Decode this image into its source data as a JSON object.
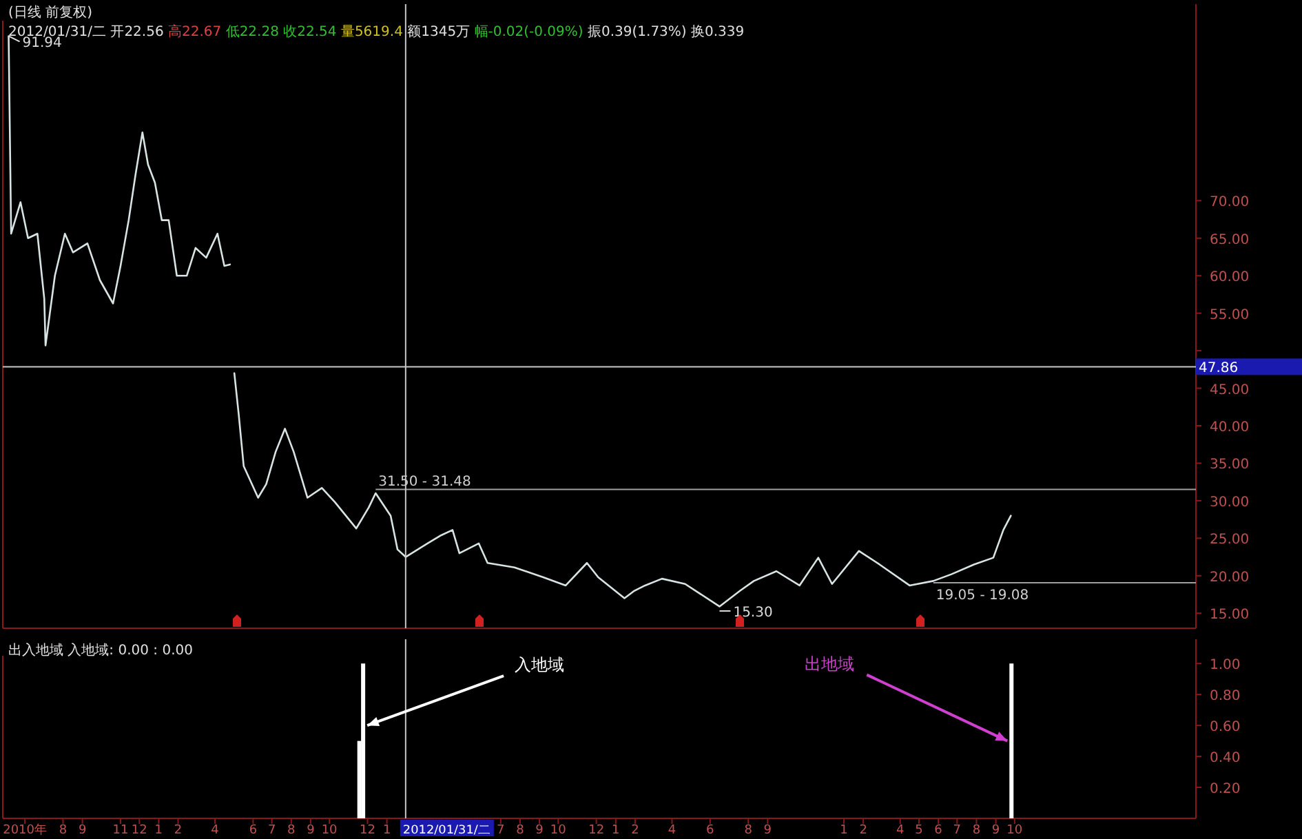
{
  "chart_data": [
    {
      "type": "line",
      "title": "(日线 前复权)",
      "subtitle": "2012/01/31/二 开22.56 高22.67 低22.28 收22.54 量5619.4 额1345万 幅-0.02(-0.09%) 振0.39(1.73%) 换0.339",
      "x": [
        "2010-05-06",
        "2010-05-10",
        "2010-05-25",
        "2010-06-06",
        "2010-06-21",
        "2010-07-02",
        "2010-07-04",
        "2010-07-19",
        "2010-08-04",
        "2010-08-17",
        "2010-09-09",
        "2010-09-29",
        "2010-10-20",
        "2010-11-01",
        "2010-11-14",
        "2010-11-25",
        "2010-12-06",
        "2010-12-15",
        "2010-12-26",
        "2011-01-06",
        "2011-01-17",
        "2011-01-30",
        "2011-02-15",
        "2011-03-01",
        "2011-03-18",
        "2011-04-05",
        "2011-04-16",
        "2011-04-25",
        "2011-04-28",
        "2011-05-02",
        "2011-05-09",
        "2011-05-17",
        "2011-06-09",
        "2011-06-22",
        "2011-07-07",
        "2011-07-22",
        "2011-08-05",
        "2011-08-27",
        "2011-09-19",
        "2011-10-10",
        "2011-11-13",
        "2011-12-03",
        "2011-12-14",
        "2012-01-07",
        "2012-01-18",
        "2012-01-31",
        "2012-03-06",
        "2012-03-28",
        "2012-04-15",
        "2012-04-26",
        "2012-05-27",
        "2012-06-10",
        "2012-07-23",
        "2012-09-07",
        "2012-10-13",
        "2012-11-16",
        "2012-12-04",
        "2013-01-15",
        "2013-01-31",
        "2013-02-17",
        "2013-03-16",
        "2013-04-22",
        "2013-06-16",
        "2013-07-19",
        "2013-08-10",
        "2013-09-15",
        "2013-10-22",
        "2013-11-21",
        "2013-12-13",
        "2014-01-25",
        "2014-02-27",
        "2014-04-16",
        "2014-05-24",
        "2014-06-22",
        "2014-07-28",
        "2014-08-28",
        "2014-09-13",
        "2014-09-25"
      ],
      "series": [
        {
          "color": "#d8e4e4",
          "values": [
            91.94,
            65.6,
            69.8,
            65,
            65.6,
            56.9,
            50.7,
            60,
            65.6,
            63.1,
            64.3,
            59.4,
            56.3,
            61.3,
            67.4,
            73.5,
            79.1,
            74.8,
            72.4,
            67.4,
            67.4,
            60,
            60,
            63.7,
            62.4,
            65.6,
            61.3,
            61.5,
            null,
            47,
            41.5,
            34.6,
            30.4,
            32.2,
            36.5,
            39.6,
            36.5,
            30.4,
            31.7,
            29.8,
            26.3,
            29.1,
            31,
            28,
            23.5,
            22.5,
            24.3,
            25.4,
            26.1,
            23,
            24.3,
            21.7,
            21.1,
            19.8,
            18.7,
            21.7,
            19.8,
            17,
            18,
            18.7,
            19.6,
            18.9,
            15.9,
            18,
            19.3,
            20.6,
            18.7,
            22.4,
            18.9,
            23.3,
            21.5,
            18.7,
            19.3,
            20.2,
            21.5,
            22.4,
            26.1,
            28
          ]
        }
      ],
      "xlim": [
        "2010-05-01",
        "2015-07-18"
      ],
      "ylim": [
        13,
        94
      ],
      "yticks": [
        {
          "value": 15,
          "label": "15.00"
        },
        {
          "value": 20,
          "label": "20.00"
        },
        {
          "value": 25,
          "label": "25.00"
        },
        {
          "value": 30,
          "label": "30.00"
        },
        {
          "value": 35,
          "label": "35.00"
        },
        {
          "value": 40,
          "label": "40.00"
        },
        {
          "value": 45,
          "label": "45.00"
        },
        {
          "value": 50,
          "label": null
        },
        {
          "value": 55,
          "label": "55.00"
        },
        {
          "value": 60,
          "label": "60.00"
        },
        {
          "value": 65,
          "label": "65.00"
        },
        {
          "value": 70,
          "label": "70.00"
        }
      ],
      "tick_labels": "y",
      "ref_lines": [
        {
          "axis": "y",
          "value": 47.86,
          "label": "47.86",
          "color": "#c8c8c8"
        },
        {
          "axis": "y",
          "value": 31.5,
          "label": "31.50 - 31.48",
          "color": "#a0a0a0"
        },
        {
          "axis": "y",
          "value": 19.05,
          "label": "19.05 - 19.08",
          "color": "#a0a0a0"
        },
        {
          "axis": "x",
          "value": "2012-01-31",
          "color": "#c8c8c8"
        }
      ],
      "annotations": [
        {
          "text": "91.94",
          "x": "2010-05-06",
          "y": 91.94
        },
        {
          "text": "15.30",
          "x": "2013-06-16",
          "y": 15.3
        }
      ]
    },
    {
      "type": "bar",
      "title": "出入地域 入地域: 0.00 : 0.00",
      "x": [
        "2011-11-18",
        "2011-11-24",
        "2014-09-26"
      ],
      "series": [
        {
          "color": "#ffffff",
          "values": [
            0.5,
            1,
            1
          ]
        }
      ],
      "xlim": [
        "2010-05-01",
        "2015-07-18"
      ],
      "ylim": [
        0,
        1.05
      ],
      "yticks": [
        {
          "value": 0.2,
          "label": "0.20"
        },
        {
          "value": 0.4,
          "label": "0.40"
        },
        {
          "value": 0.6,
          "label": "0.60"
        },
        {
          "value": 0.8,
          "label": "0.80"
        },
        {
          "value": 1,
          "label": "1.00"
        }
      ],
      "xticks": [
        {
          "value": "2010-06-01",
          "label": "2010年"
        },
        {
          "value": "2010-08-01",
          "label": "8"
        },
        {
          "value": "2010-09-01",
          "label": "9"
        },
        {
          "value": "2010-11-01",
          "label": "11"
        },
        {
          "value": "2010-12-01",
          "label": "12"
        },
        {
          "value": "2011-01-01",
          "label": "1"
        },
        {
          "value": "2011-02-01",
          "label": "2"
        },
        {
          "value": "2011-04-01",
          "label": "4"
        },
        {
          "value": "2011-06-01",
          "label": "6"
        },
        {
          "value": "2011-07-01",
          "label": "7"
        },
        {
          "value": "2011-08-01",
          "label": "8"
        },
        {
          "value": "2011-09-01",
          "label": "9"
        },
        {
          "value": "2011-10-01",
          "label": "10"
        },
        {
          "value": "2011-12-01",
          "label": "12"
        },
        {
          "value": "2012-01-01",
          "label": "1"
        },
        {
          "value": "2012-07-01",
          "label": "7"
        },
        {
          "value": "2012-08-01",
          "label": "8"
        },
        {
          "value": "2012-09-01",
          "label": "9"
        },
        {
          "value": "2012-10-01",
          "label": "10"
        },
        {
          "value": "2012-12-01",
          "label": "12"
        },
        {
          "value": "2013-01-01",
          "label": "1"
        },
        {
          "value": "2013-02-01",
          "label": "2"
        },
        {
          "value": "2013-04-01",
          "label": "4"
        },
        {
          "value": "2013-06-01",
          "label": "6"
        },
        {
          "value": "2013-08-01",
          "label": "8"
        },
        {
          "value": "2013-09-01",
          "label": "9"
        },
        {
          "value": "2014-01-01",
          "label": "1"
        },
        {
          "value": "2014-02-01",
          "label": "2"
        },
        {
          "value": "2014-04-01",
          "label": "4"
        },
        {
          "value": "2014-05-01",
          "label": "5"
        },
        {
          "value": "2014-06-01",
          "label": "6"
        },
        {
          "value": "2014-07-01",
          "label": "7"
        },
        {
          "value": "2014-08-01",
          "label": "8"
        },
        {
          "value": "2014-09-01",
          "label": "9"
        },
        {
          "value": "2014-10-01",
          "label": "10"
        }
      ],
      "ref_lines": [
        {
          "axis": "x",
          "value": "2012-01-31",
          "label": "2012/01/31/二",
          "color": "#c8c8c8"
        }
      ],
      "annotations": [
        {
          "text": "入地域",
          "x": "2011-11-24",
          "y": 0.6
        },
        {
          "text": "出地域",
          "x": "2014-09-26",
          "y": 0.5
        }
      ]
    }
  ]
}
